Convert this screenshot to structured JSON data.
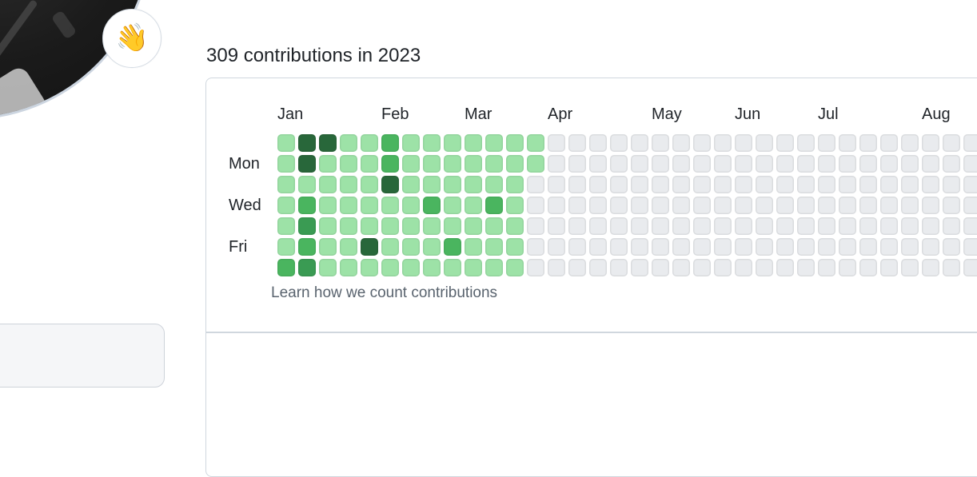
{
  "header": {
    "title": "309 contributions in 2023"
  },
  "status": {
    "emoji": "👋"
  },
  "footer": {
    "learn_link_label": "Learn how we count contributions"
  },
  "chart_data": {
    "type": "heatmap",
    "title": "309 contributions in 2023",
    "year": "2023",
    "total_contributions": 309,
    "month_labels": [
      {
        "label": "Jan",
        "week": 1
      },
      {
        "label": "Feb",
        "week": 6
      },
      {
        "label": "Mar",
        "week": 10
      },
      {
        "label": "Apr",
        "week": 14
      },
      {
        "label": "May",
        "week": 19
      },
      {
        "label": "Jun",
        "week": 23
      },
      {
        "label": "Jul",
        "week": 27
      },
      {
        "label": "Aug",
        "week": 32
      }
    ],
    "day_labels": [
      {
        "label": "Mon",
        "row": 2
      },
      {
        "label": "Wed",
        "row": 4
      },
      {
        "label": "Fri",
        "row": 6
      }
    ],
    "levels_palette": {
      "0": "#e9ebee",
      "1": "#9de2a7",
      "2": "#4ab55f",
      "3": "#3a9b53",
      "4": "#28673a"
    },
    "weeks": [
      [
        1,
        1,
        1,
        1,
        1,
        1,
        2
      ],
      [
        4,
        4,
        1,
        2,
        3,
        2,
        3
      ],
      [
        4,
        1,
        1,
        1,
        1,
        1,
        1
      ],
      [
        1,
        1,
        1,
        1,
        1,
        1,
        1
      ],
      [
        1,
        1,
        1,
        1,
        1,
        4,
        1
      ],
      [
        2,
        2,
        4,
        1,
        1,
        1,
        1
      ],
      [
        1,
        1,
        1,
        1,
        1,
        1,
        1
      ],
      [
        1,
        1,
        1,
        2,
        1,
        1,
        1
      ],
      [
        1,
        1,
        1,
        1,
        1,
        2,
        1
      ],
      [
        1,
        1,
        1,
        1,
        1,
        1,
        1
      ],
      [
        1,
        1,
        1,
        2,
        1,
        1,
        1
      ],
      [
        1,
        1,
        1,
        1,
        1,
        1,
        1
      ],
      [
        1,
        1,
        0,
        0,
        0,
        0,
        0
      ],
      [
        0,
        0,
        0,
        0,
        0,
        0,
        0
      ],
      [
        0,
        0,
        0,
        0,
        0,
        0,
        0
      ],
      [
        0,
        0,
        0,
        0,
        0,
        0,
        0
      ],
      [
        0,
        0,
        0,
        0,
        0,
        0,
        0
      ],
      [
        0,
        0,
        0,
        0,
        0,
        0,
        0
      ],
      [
        0,
        0,
        0,
        0,
        0,
        0,
        0
      ],
      [
        0,
        0,
        0,
        0,
        0,
        0,
        0
      ],
      [
        0,
        0,
        0,
        0,
        0,
        0,
        0
      ],
      [
        0,
        0,
        0,
        0,
        0,
        0,
        0
      ],
      [
        0,
        0,
        0,
        0,
        0,
        0,
        0
      ],
      [
        0,
        0,
        0,
        0,
        0,
        0,
        0
      ],
      [
        0,
        0,
        0,
        0,
        0,
        0,
        0
      ],
      [
        0,
        0,
        0,
        0,
        0,
        0,
        0
      ],
      [
        0,
        0,
        0,
        0,
        0,
        0,
        0
      ],
      [
        0,
        0,
        0,
        0,
        0,
        0,
        0
      ],
      [
        0,
        0,
        0,
        0,
        0,
        0,
        0
      ],
      [
        0,
        0,
        0,
        0,
        0,
        0,
        0
      ],
      [
        0,
        0,
        0,
        0,
        0,
        0,
        0
      ],
      [
        0,
        0,
        0,
        0,
        0,
        0,
        0
      ],
      [
        0,
        0,
        0,
        0,
        0,
        0,
        0
      ],
      [
        0,
        0,
        0,
        0,
        0,
        0,
        0
      ]
    ]
  }
}
